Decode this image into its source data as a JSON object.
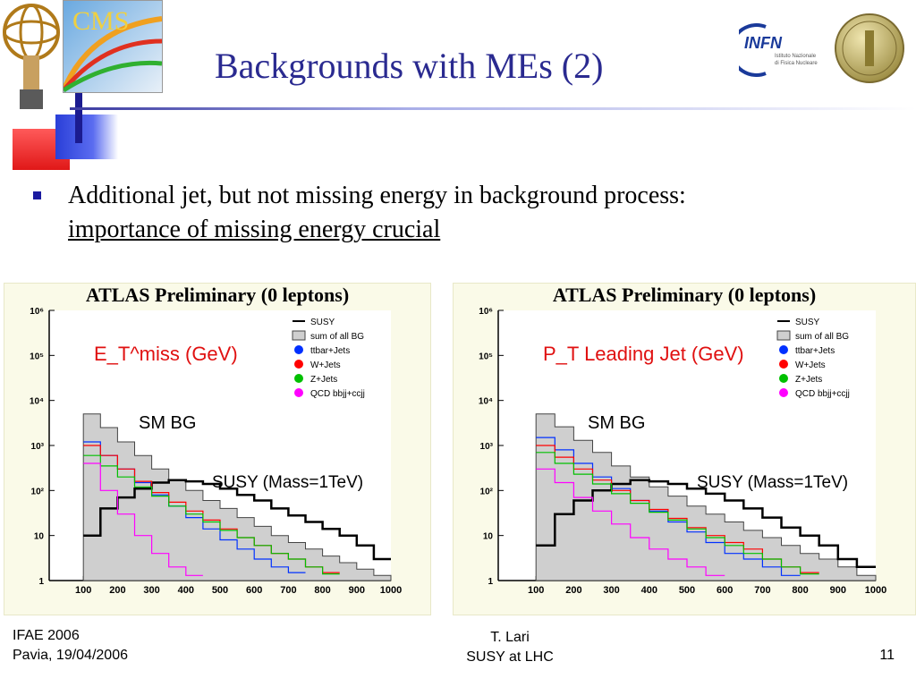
{
  "title": "Backgrounds with MEs (2)",
  "bullet": {
    "line1": "Additional jet, but not missing energy in background process:",
    "line2": "importance of missing energy crucial"
  },
  "logos": {
    "cms": "CMS",
    "infn": "INFN",
    "infn_sub1": "Istituto Nazionale",
    "infn_sub2": "di Fisica Nucleare"
  },
  "footer": {
    "left1": "IFAE 2006",
    "left2": "Pavia, 19/04/2006",
    "center1": "T. Lari",
    "center2": "SUSY at LHC",
    "page": "11"
  },
  "chart_data": [
    {
      "type": "line",
      "title": "ATLAS Preliminary (0 leptons)",
      "variable_label": "E_T^miss (GeV)",
      "x_ticks": [
        "100",
        "200",
        "300",
        "400",
        "500",
        "600",
        "700",
        "800",
        "900",
        "1000"
      ],
      "y_ticks": [
        "1",
        "10",
        "10²",
        "10³",
        "10⁴",
        "10⁵",
        "10⁶"
      ],
      "yscale": "log",
      "xlim": [
        0,
        1000
      ],
      "ylim": [
        1,
        1000000
      ],
      "annotations": [
        "SM BG",
        "SUSY (Mass=1TeV)"
      ],
      "legend": [
        "SUSY",
        "sum of all BG",
        "ttbar+Jets",
        "W+Jets",
        "Z+Jets",
        "QCD bbjj+ccjj"
      ],
      "series": [
        {
          "name": "sum of all BG",
          "color": "#555555",
          "x": [
            100,
            150,
            200,
            250,
            300,
            350,
            400,
            450,
            500,
            550,
            600,
            650,
            700,
            750,
            800,
            850,
            900,
            950
          ],
          "y": [
            5000,
            2500,
            1200,
            600,
            300,
            170,
            100,
            60,
            40,
            25,
            16,
            10,
            7,
            5,
            3.5,
            2.5,
            1.8,
            1.3
          ]
        },
        {
          "name": "SUSY",
          "color": "#000000",
          "x": [
            100,
            150,
            200,
            250,
            300,
            350,
            400,
            450,
            500,
            550,
            600,
            650,
            700,
            750,
            800,
            850,
            900,
            950
          ],
          "y": [
            10,
            40,
            70,
            110,
            150,
            170,
            160,
            140,
            110,
            80,
            60,
            40,
            28,
            20,
            14,
            10,
            6,
            3
          ]
        },
        {
          "name": "ttbar+Jets",
          "color": "#0030ff",
          "x": [
            100,
            150,
            200,
            250,
            300,
            350,
            400,
            450,
            500,
            550,
            600,
            650,
            700
          ],
          "y": [
            1200,
            600,
            300,
            150,
            80,
            45,
            25,
            14,
            8,
            5,
            3,
            2,
            1.5
          ]
        },
        {
          "name": "W+Jets",
          "color": "#ff0000",
          "x": [
            100,
            150,
            200,
            250,
            300,
            350,
            400,
            450,
            500,
            550,
            600,
            650,
            700,
            750,
            800
          ],
          "y": [
            1000,
            600,
            300,
            160,
            90,
            55,
            35,
            22,
            14,
            9,
            6,
            4,
            3,
            2,
            1.5
          ]
        },
        {
          "name": "Z+Jets",
          "color": "#00c000",
          "x": [
            100,
            150,
            200,
            250,
            300,
            350,
            400,
            450,
            500,
            550,
            600,
            650,
            700,
            750,
            800
          ],
          "y": [
            600,
            350,
            200,
            120,
            75,
            45,
            30,
            20,
            13,
            9,
            6,
            4,
            3,
            2,
            1.4
          ]
        },
        {
          "name": "QCD bbjj+ccjj",
          "color": "#ff00ff",
          "x": [
            100,
            150,
            200,
            250,
            300,
            350,
            400
          ],
          "y": [
            400,
            100,
            30,
            10,
            4,
            2,
            1.3
          ]
        }
      ]
    },
    {
      "type": "line",
      "title": "ATLAS Preliminary (0 leptons)",
      "variable_label": "P_T Leading Jet (GeV)",
      "x_ticks": [
        "100",
        "200",
        "300",
        "400",
        "500",
        "600",
        "700",
        "800",
        "900",
        "1000"
      ],
      "y_ticks": [
        "1",
        "10",
        "10²",
        "10³",
        "10⁴",
        "10⁵",
        "10⁶"
      ],
      "yscale": "log",
      "xlim": [
        0,
        1000
      ],
      "ylim": [
        1,
        1000000
      ],
      "annotations": [
        "SM BG",
        "SUSY (Mass=1TeV)"
      ],
      "legend": [
        "SUSY",
        "sum of all BG",
        "ttbar+Jets",
        "W+Jets",
        "Z+Jets",
        "QCD bbjj+ccjj"
      ],
      "series": [
        {
          "name": "sum of all BG",
          "color": "#555555",
          "x": [
            100,
            150,
            200,
            250,
            300,
            350,
            400,
            450,
            500,
            550,
            600,
            650,
            700,
            750,
            800,
            850,
            900,
            950
          ],
          "y": [
            5000,
            2600,
            1300,
            700,
            350,
            200,
            120,
            75,
            45,
            30,
            20,
            13,
            9,
            6,
            4,
            3,
            2,
            1.3
          ]
        },
        {
          "name": "SUSY",
          "color": "#000000",
          "x": [
            100,
            150,
            200,
            250,
            300,
            350,
            400,
            450,
            500,
            550,
            600,
            650,
            700,
            750,
            800,
            850,
            900,
            950
          ],
          "y": [
            6,
            30,
            60,
            100,
            140,
            170,
            160,
            140,
            110,
            85,
            60,
            40,
            25,
            15,
            10,
            6,
            3,
            2
          ]
        },
        {
          "name": "ttbar+Jets",
          "color": "#0030ff",
          "x": [
            100,
            150,
            200,
            250,
            300,
            350,
            400,
            450,
            500,
            550,
            600,
            650,
            700,
            750
          ],
          "y": [
            1500,
            800,
            400,
            200,
            110,
            60,
            35,
            20,
            12,
            7,
            4,
            3,
            2,
            1.3
          ]
        },
        {
          "name": "W+Jets",
          "color": "#ff0000",
          "x": [
            100,
            150,
            200,
            250,
            300,
            350,
            400,
            450,
            500,
            550,
            600,
            650,
            700,
            750,
            800
          ],
          "y": [
            1000,
            550,
            300,
            170,
            100,
            60,
            38,
            24,
            15,
            10,
            7,
            5,
            3,
            2,
            1.5
          ]
        },
        {
          "name": "Z+Jets",
          "color": "#00c000",
          "x": [
            100,
            150,
            200,
            250,
            300,
            350,
            400,
            450,
            500,
            550,
            600,
            650,
            700,
            750,
            800
          ],
          "y": [
            700,
            400,
            230,
            140,
            85,
            52,
            33,
            22,
            14,
            9,
            6,
            4,
            3,
            2,
            1.4
          ]
        },
        {
          "name": "QCD bbjj+ccjj",
          "color": "#ff00ff",
          "x": [
            100,
            150,
            200,
            250,
            300,
            350,
            400,
            450,
            500,
            550
          ],
          "y": [
            300,
            150,
            70,
            35,
            18,
            9,
            5,
            3,
            2,
            1.3
          ]
        }
      ]
    }
  ]
}
